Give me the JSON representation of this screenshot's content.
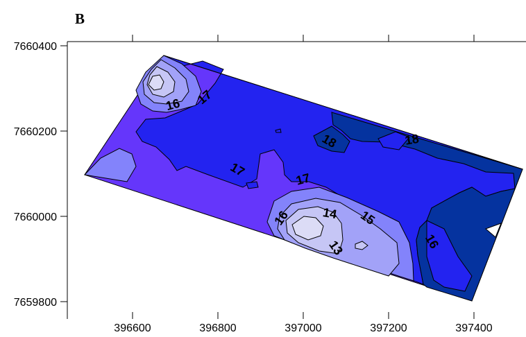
{
  "panel_label": "B",
  "chart_data": {
    "type": "contour",
    "title": "",
    "xlabel": "",
    "ylabel": "",
    "xlim": [
      396450,
      397520
    ],
    "ylim": [
      7659770,
      7660410
    ],
    "x_ticks": [
      396600,
      396800,
      397000,
      397200,
      397400
    ],
    "y_ticks": [
      7659800,
      7660000,
      7660200,
      7660400
    ],
    "x_tick_labels": [
      "396600",
      "396800",
      "397000",
      "397200",
      "397400"
    ],
    "y_tick_labels": [
      "7659800",
      "7660000",
      "7660200",
      "7660400"
    ],
    "grid": false,
    "levels": [
      13,
      14,
      15,
      16,
      17,
      18
    ],
    "level_colors": {
      "below_13": "#dcdcf6",
      "13_14": "#c6c6f5",
      "14_15": "#a2a2f8",
      "15_16": "#8383fb",
      "16_17": "#6536fb",
      "17_18": "#2323f0",
      "above_18": "#05339f"
    },
    "contour_labels": [
      {
        "text": "16",
        "x": 396695,
        "y": 7660260
      },
      {
        "text": "17",
        "x": 396770,
        "y": 7660278
      },
      {
        "text": "17",
        "x": 396845,
        "y": 7660108
      },
      {
        "text": "18",
        "x": 397060,
        "y": 7660175
      },
      {
        "text": "18",
        "x": 397255,
        "y": 7660178
      },
      {
        "text": "17",
        "x": 397000,
        "y": 7660085
      },
      {
        "text": "16",
        "x": 396950,
        "y": 7659995
      },
      {
        "text": "14",
        "x": 397062,
        "y": 7660005
      },
      {
        "text": "15",
        "x": 397150,
        "y": 7659995
      },
      {
        "text": "13",
        "x": 397075,
        "y": 7659925
      },
      {
        "text": "16",
        "x": 397300,
        "y": 7659940
      }
    ]
  }
}
